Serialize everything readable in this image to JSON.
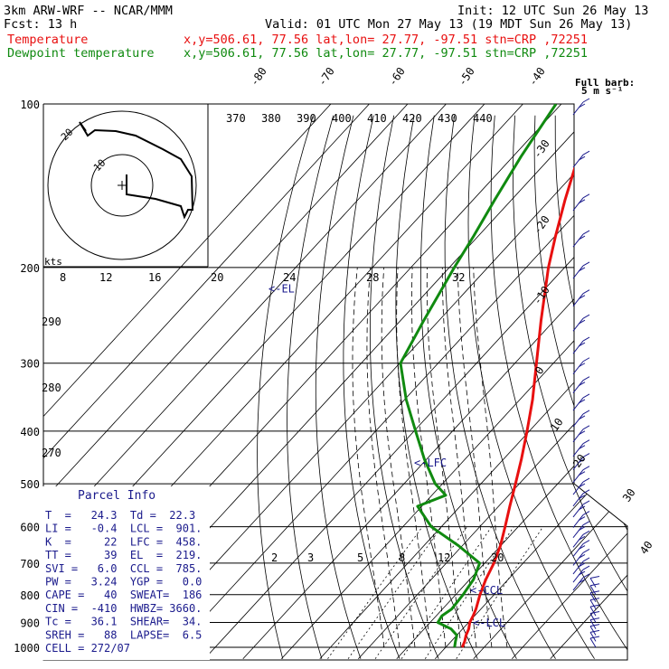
{
  "header": {
    "title": "3km ARW-WRF -- NCAR/MMM",
    "init": "Init: 12 UTC Sun 26 May 13",
    "fcst": "Fcst:    13 h",
    "valid": "Valid: 01 UTC Mon 27 May 13 (19 MDT Sun 26 May 13)",
    "temp_label": "Temperature",
    "dew_label": "Dewpoint temperature",
    "temp_loc": "x,y=506.61, 77.56   lat,lon= 27.77, -97.51   stn=CRP ,72251",
    "dew_loc": "x,y=506.61, 77.56   lat,lon= 27.77, -97.51   stn=CRP ,72251",
    "colors": {
      "temperature": "#e81010",
      "dewpoint": "#108a10",
      "annotation": "#1a1a8c"
    }
  },
  "barb_key": {
    "line1": "Full barb:",
    "line2": "5 m s⁻¹"
  },
  "parcel_info": {
    "title": "Parcel Info",
    "rows": [
      "T  =   24.3  Td =  22.3",
      "LI =   -0.4  LCL =  901.",
      "K  =     22  LFC =  458.",
      "TT =     39  EL  =  219.",
      "SVI =   6.0  CCL =  785.",
      "PW =   3.24  YGP =   0.0",
      "CAPE =   40  SWEAT=  186",
      "CIN =  -410  HWBZ= 3660.",
      "Tc =   36.1  SHEAR=  34.",
      "SREH =   88  LAPSE=  6.5",
      "CELL = 272/07"
    ]
  },
  "hodograph": {
    "label_kts": "kts",
    "ring_labels": [
      "20",
      "10"
    ],
    "speed_labels": [
      "8",
      "12",
      "16",
      "20",
      "24",
      "28",
      "32"
    ]
  },
  "chart_data": {
    "type": "skew-t",
    "pressure_levels": [
      1000,
      900,
      800,
      700,
      600,
      500,
      400,
      300,
      200,
      100
    ],
    "pressure_labels": [
      "1000",
      "900",
      "800",
      "700",
      "600",
      "500",
      "400",
      "300",
      "200",
      "100"
    ],
    "isotherm_labels": [
      "-80",
      "-70",
      "-60",
      "-50",
      "-40",
      "-30",
      "-20",
      "-10",
      "0",
      "10",
      "20",
      "30",
      "40"
    ],
    "theta_labels_top": [
      "370",
      "380",
      "390",
      "400",
      "410",
      "420",
      "430",
      "440"
    ],
    "theta_labels_left": [
      "290",
      "280",
      "270"
    ],
    "mixing_ratio_labels": [
      "2",
      "3",
      "5",
      "8",
      "12",
      "20"
    ],
    "temperature": [
      {
        "p": 1000,
        "t": 24.3
      },
      {
        "p": 975,
        "t": 23.5
      },
      {
        "p": 950,
        "t": 22.4
      },
      {
        "p": 925,
        "t": 21.6
      },
      {
        "p": 900,
        "t": 20.3
      },
      {
        "p": 875,
        "t": 19.6
      },
      {
        "p": 850,
        "t": 18.7
      },
      {
        "p": 800,
        "t": 16.3
      },
      {
        "p": 750,
        "t": 14.2
      },
      {
        "p": 700,
        "t": 12.4
      },
      {
        "p": 650,
        "t": 9.9
      },
      {
        "p": 600,
        "t": 6.6
      },
      {
        "p": 550,
        "t": 2.9
      },
      {
        "p": 500,
        "t": -1.0
      },
      {
        "p": 450,
        "t": -5.4
      },
      {
        "p": 400,
        "t": -10.6
      },
      {
        "p": 350,
        "t": -16.7
      },
      {
        "p": 300,
        "t": -24.4
      },
      {
        "p": 250,
        "t": -33.5
      },
      {
        "p": 200,
        "t": -44.2
      },
      {
        "p": 175,
        "t": -49.9
      },
      {
        "p": 150,
        "t": -56.1
      },
      {
        "p": 125,
        "t": -63.0
      },
      {
        "p": 100,
        "t": -70.0
      }
    ],
    "dewpoint": [
      {
        "p": 1000,
        "t": 22.3
      },
      {
        "p": 975,
        "t": 21.1
      },
      {
        "p": 950,
        "t": 20.0
      },
      {
        "p": 925,
        "t": 17.0
      },
      {
        "p": 900,
        "t": 12.0
      },
      {
        "p": 875,
        "t": 11.5
      },
      {
        "p": 850,
        "t": 12.4
      },
      {
        "p": 800,
        "t": 11.9
      },
      {
        "p": 750,
        "t": 11.0
      },
      {
        "p": 700,
        "t": 8.7
      },
      {
        "p": 650,
        "t": -1.0
      },
      {
        "p": 600,
        "t": -12.6
      },
      {
        "p": 550,
        "t": -21.1
      },
      {
        "p": 525,
        "t": -16.4
      },
      {
        "p": 500,
        "t": -21.9
      },
      {
        "p": 450,
        "t": -30.7
      },
      {
        "p": 400,
        "t": -39.6
      },
      {
        "p": 350,
        "t": -49.6
      },
      {
        "p": 300,
        "t": -59.8
      },
      {
        "p": 250,
        "t": -64.0
      },
      {
        "p": 200,
        "t": -68.7
      },
      {
        "p": 175,
        "t": -71.2
      },
      {
        "p": 150,
        "t": -74.4
      },
      {
        "p": 125,
        "t": -77.9
      },
      {
        "p": 100,
        "t": -81.4
      }
    ],
    "levels_marked": [
      {
        "label": "<-EL",
        "p": 219
      },
      {
        "label": "<-LFC",
        "p": 458
      },
      {
        "label": "<-CCL",
        "p": 785
      },
      {
        "label": "<-LCL",
        "p": 901
      }
    ],
    "wind_barbs_p": [
      1000,
      975,
      950,
      925,
      900,
      875,
      850,
      825,
      800,
      775,
      750,
      725,
      700,
      675,
      650,
      625,
      600,
      575,
      550,
      525,
      500,
      475,
      450,
      425,
      400,
      375,
      350,
      325,
      300,
      275,
      250,
      225,
      200,
      175,
      150,
      125,
      100
    ]
  }
}
